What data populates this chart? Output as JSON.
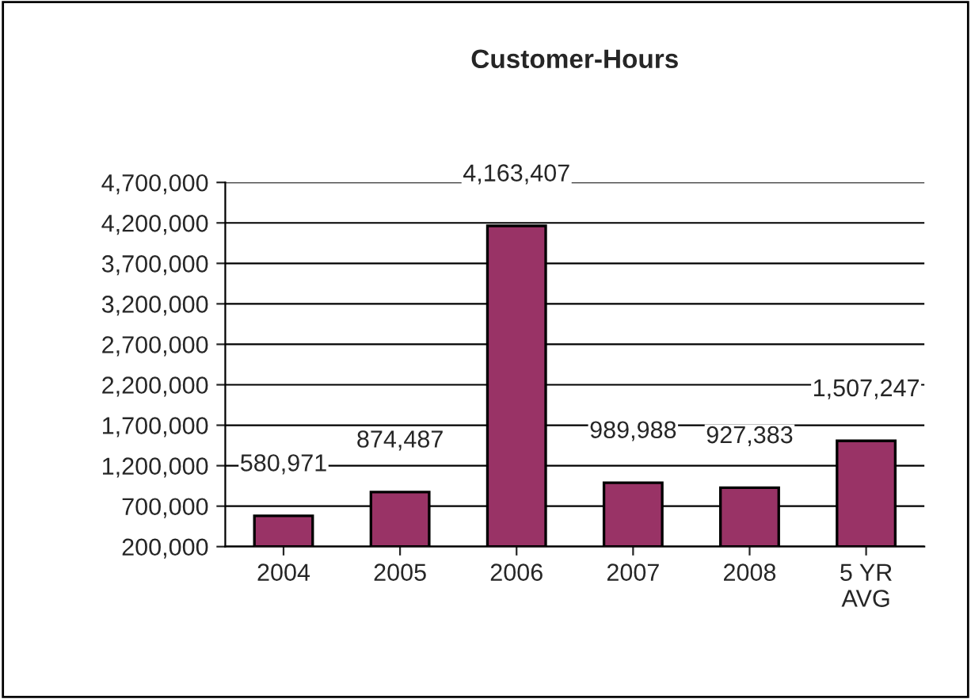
{
  "chart_data": {
    "type": "bar",
    "title": "Customer-Hours",
    "categories": [
      "2004",
      "2005",
      "2006",
      "2007",
      "2008",
      "5 YR\nAVG"
    ],
    "values": [
      580971,
      874487,
      4163407,
      989988,
      927383,
      1507247
    ],
    "value_labels": [
      "580,971",
      "874,487",
      "4,163,407",
      "989,988",
      "927,383",
      "1,507,247"
    ],
    "color": "#993366",
    "ylim": [
      200000,
      4700000
    ],
    "yticks": [
      {
        "value": 200000,
        "label": "200,000"
      },
      {
        "value": 700000,
        "label": "700,000"
      },
      {
        "value": 1200000,
        "label": "1,200,000"
      },
      {
        "value": 1700000,
        "label": "1,700,000"
      },
      {
        "value": 2200000,
        "label": "2,200,000"
      },
      {
        "value": 2700000,
        "label": "2,700,000"
      },
      {
        "value": 3200000,
        "label": "3,200,000"
      },
      {
        "value": 3700000,
        "label": "3,700,000"
      },
      {
        "value": 4200000,
        "label": "4,200,000"
      },
      {
        "value": 4700000,
        "label": "4,700,000"
      }
    ],
    "grid": "y",
    "legend": false
  }
}
